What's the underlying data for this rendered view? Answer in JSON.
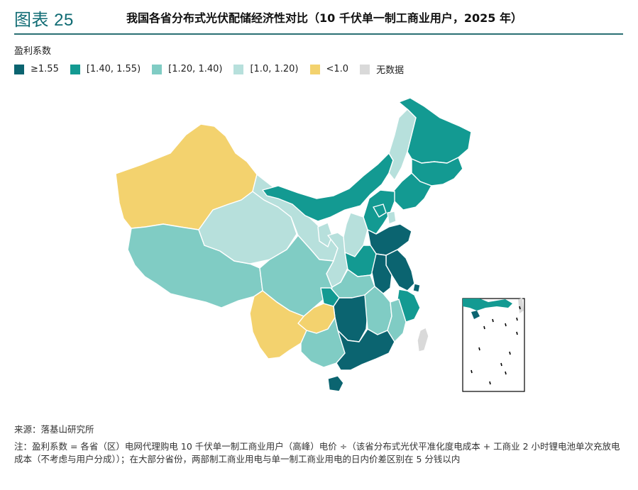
{
  "header": {
    "figure_label": "图表 25",
    "title": "我国各省分布式光伏配储经济性对比（10 千伏单一制工商业用户，2025 年）"
  },
  "legend": {
    "title": "盈利系数",
    "items": [
      {
        "label": "≥1.55",
        "color": "#0b6470"
      },
      {
        "label": "[1.40, 1.55)",
        "color": "#139a92"
      },
      {
        "label": "[1.20, 1.40)",
        "color": "#80ccc4"
      },
      {
        "label": "[1.0, 1.20)",
        "color": "#b7e0dc"
      },
      {
        "label": "<1.0",
        "color": "#f3d26e"
      },
      {
        "label": "无数据",
        "color": "#d9d9d9"
      }
    ]
  },
  "footer": {
    "source": "来源：落基山研究所",
    "note": "注：盈利系数 = 各省（区）电网代理购电 10 千伏单一制工商业用户（高峰）电价 ÷（该省分布式光伏平准化度电成本 + 工商业 2 小时锂电池单次充放电成本（不考虑与用户分成））；在大部分省份，两部制工商业用电与单一制工商业用电的日内价差区别在 5 分钱以内"
  },
  "regions": [
    {
      "name": "新疆",
      "legend_class": "<1.0"
    },
    {
      "name": "西藏",
      "legend_class": "[1.20, 1.40)"
    },
    {
      "name": "青海",
      "legend_class": "[1.0, 1.20)"
    },
    {
      "name": "甘肃",
      "legend_class": "[1.0, 1.20)"
    },
    {
      "name": "内蒙古",
      "legend_class": "[1.40, 1.55)"
    },
    {
      "name": "黑龙江",
      "legend_class": "[1.40, 1.55)"
    },
    {
      "name": "吉林",
      "legend_class": "[1.40, 1.55)"
    },
    {
      "name": "辽宁",
      "legend_class": "[1.40, 1.55)"
    },
    {
      "name": "蒙东",
      "legend_class": "[1.0, 1.20)"
    },
    {
      "name": "宁夏",
      "legend_class": "[1.0, 1.20)"
    },
    {
      "name": "陕西",
      "legend_class": "[1.0, 1.20)"
    },
    {
      "name": "山西",
      "legend_class": "[1.0, 1.20)"
    },
    {
      "name": "河北",
      "legend_class": "[1.40, 1.55)"
    },
    {
      "name": "北京",
      "legend_class": "[1.40, 1.55)"
    },
    {
      "name": "天津",
      "legend_class": "[1.0, 1.20)"
    },
    {
      "name": "山东",
      "legend_class": "≥1.55"
    },
    {
      "name": "河南",
      "legend_class": "[1.40, 1.55)"
    },
    {
      "name": "江苏",
      "legend_class": "≥1.55"
    },
    {
      "name": "安徽",
      "legend_class": "≥1.55"
    },
    {
      "name": "上海",
      "legend_class": "≥1.55"
    },
    {
      "name": "浙江",
      "legend_class": "[1.40, 1.55)"
    },
    {
      "name": "湖北",
      "legend_class": "[1.20, 1.40)"
    },
    {
      "name": "四川",
      "legend_class": "[1.20, 1.40)"
    },
    {
      "name": "重庆",
      "legend_class": "[1.40, 1.55)"
    },
    {
      "name": "湖南",
      "legend_class": "≥1.55"
    },
    {
      "name": "江西",
      "legend_class": "[1.20, 1.40)"
    },
    {
      "name": "福建",
      "legend_class": "[1.20, 1.40)"
    },
    {
      "name": "贵州",
      "legend_class": "<1.0"
    },
    {
      "name": "云南",
      "legend_class": "<1.0"
    },
    {
      "name": "广西",
      "legend_class": "[1.20, 1.40)"
    },
    {
      "name": "广东",
      "legend_class": "≥1.55"
    },
    {
      "name": "海南",
      "legend_class": "≥1.55"
    },
    {
      "name": "台湾",
      "legend_class": "无数据"
    }
  ]
}
